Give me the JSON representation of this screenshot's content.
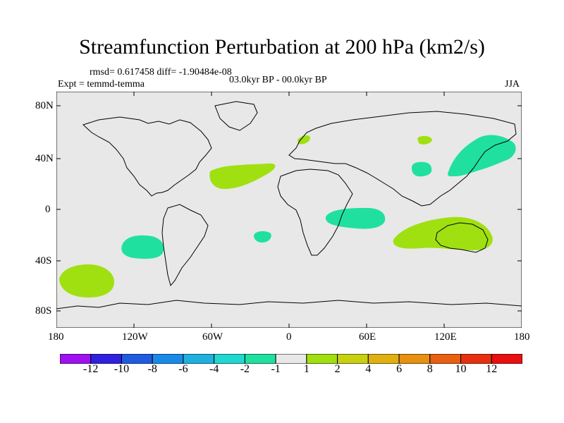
{
  "title": "Streamfunction Perturbation at 200 hPa (km2/s)",
  "stats": "rmsd= 0.617458 diff= -1.90484e-08",
  "experiment": "Expt = temmd-temma",
  "period": "03.0kyr BP - 00.0kyr BP",
  "season": "JJA",
  "lat_ticks": [
    "80N",
    "40N",
    "0",
    "40S",
    "80S"
  ],
  "lon_ticks": [
    "180",
    "120W",
    "60W",
    "0",
    "60E",
    "120E",
    "180"
  ],
  "colorbar": {
    "labels": [
      "-12",
      "-10",
      "-8",
      "-6",
      "-4",
      "-2",
      "-1",
      "1",
      "2",
      "4",
      "6",
      "8",
      "10",
      "12"
    ],
    "colors": [
      "#a010f0",
      "#3020e0",
      "#1f5ce0",
      "#1a8ae8",
      "#20b0e0",
      "#20d8d0",
      "#20e0a0",
      "#e8e8e8",
      "#a0e010",
      "#c8d010",
      "#e0b010",
      "#e89010",
      "#e86010",
      "#e83010",
      "#e81010"
    ]
  },
  "colors": {
    "background_map": "#e8e8e8",
    "positive_1": "#a0e010",
    "negative_1": "#20e0a0"
  }
}
